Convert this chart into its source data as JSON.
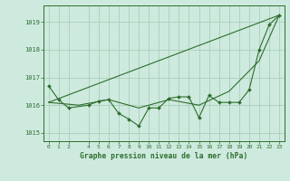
{
  "title": "Graphe pression niveau de la mer (hPa)",
  "background_color": "#ceeade",
  "line_color": "#2d6e2d",
  "grid_color": "#aacfba",
  "xlim": [
    -0.5,
    23.5
  ],
  "ylim": [
    1014.7,
    1019.6
  ],
  "yticks": [
    1015,
    1016,
    1017,
    1018,
    1019
  ],
  "xticks": [
    0,
    1,
    2,
    4,
    5,
    6,
    7,
    8,
    9,
    10,
    11,
    12,
    13,
    14,
    15,
    16,
    17,
    18,
    19,
    20,
    21,
    22,
    23
  ],
  "series_main": {
    "x": [
      0,
      1,
      2,
      4,
      5,
      6,
      7,
      8,
      9,
      10,
      11,
      12,
      13,
      14,
      15,
      16,
      17,
      18,
      19,
      20,
      21,
      22,
      23
    ],
    "y": [
      1016.7,
      1016.2,
      1015.9,
      1016.0,
      1016.15,
      1016.2,
      1015.7,
      1015.5,
      1015.25,
      1015.9,
      1015.9,
      1016.25,
      1016.3,
      1016.3,
      1015.55,
      1016.35,
      1016.1,
      1016.1,
      1016.1,
      1016.55,
      1018.0,
      1018.9,
      1019.25
    ]
  },
  "series_smooth": {
    "x": [
      0,
      3,
      6,
      9,
      12,
      15,
      18,
      21,
      23
    ],
    "y": [
      1016.1,
      1016.0,
      1016.2,
      1015.9,
      1016.2,
      1016.0,
      1016.5,
      1017.6,
      1019.25
    ]
  },
  "series_trend": {
    "x": [
      0,
      23
    ],
    "y": [
      1016.1,
      1019.25
    ]
  }
}
